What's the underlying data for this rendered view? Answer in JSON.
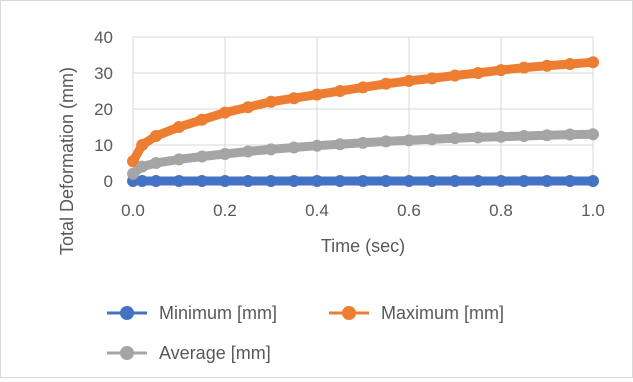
{
  "chart_data": {
    "type": "line",
    "title": "",
    "xlabel": "Time (sec)",
    "ylabel": "Total Deformation (mm)",
    "xlim": [
      0.0,
      1.0
    ],
    "ylim": [
      0,
      40
    ],
    "x_ticks": [
      "0.0",
      "0.2",
      "0.4",
      "0.6",
      "0.8",
      "1.0"
    ],
    "y_ticks": [
      "0",
      "10",
      "20",
      "30",
      "40"
    ],
    "grid": true,
    "legend_position": "bottom",
    "x": [
      0.0,
      0.02,
      0.05,
      0.1,
      0.15,
      0.2,
      0.25,
      0.3,
      0.35,
      0.4,
      0.45,
      0.5,
      0.55,
      0.6,
      0.65,
      0.7,
      0.75,
      0.8,
      0.85,
      0.9,
      0.95,
      1.0
    ],
    "series": [
      {
        "name": "Minimum [mm]",
        "color": "#4472c4",
        "values": [
          0,
          0,
          0,
          0,
          0,
          0,
          0,
          0,
          0,
          0,
          0,
          0,
          0,
          0,
          0,
          0,
          0,
          0,
          0,
          0,
          0,
          0
        ]
      },
      {
        "name": "Maximum [mm]",
        "color": "#ed7d31",
        "values": [
          5.5,
          10.0,
          12.5,
          15.0,
          17.0,
          19.0,
          20.5,
          22.0,
          23.0,
          24.0,
          25.0,
          26.0,
          27.0,
          27.8,
          28.5,
          29.3,
          30.0,
          30.8,
          31.5,
          32.0,
          32.5,
          33.0
        ]
      },
      {
        "name": "Average [mm]",
        "color": "#a5a5a5",
        "values": [
          2.0,
          4.0,
          5.0,
          6.0,
          6.8,
          7.5,
          8.2,
          8.8,
          9.3,
          9.8,
          10.2,
          10.6,
          11.0,
          11.3,
          11.6,
          11.9,
          12.1,
          12.3,
          12.5,
          12.7,
          12.9,
          13.0
        ]
      }
    ]
  }
}
